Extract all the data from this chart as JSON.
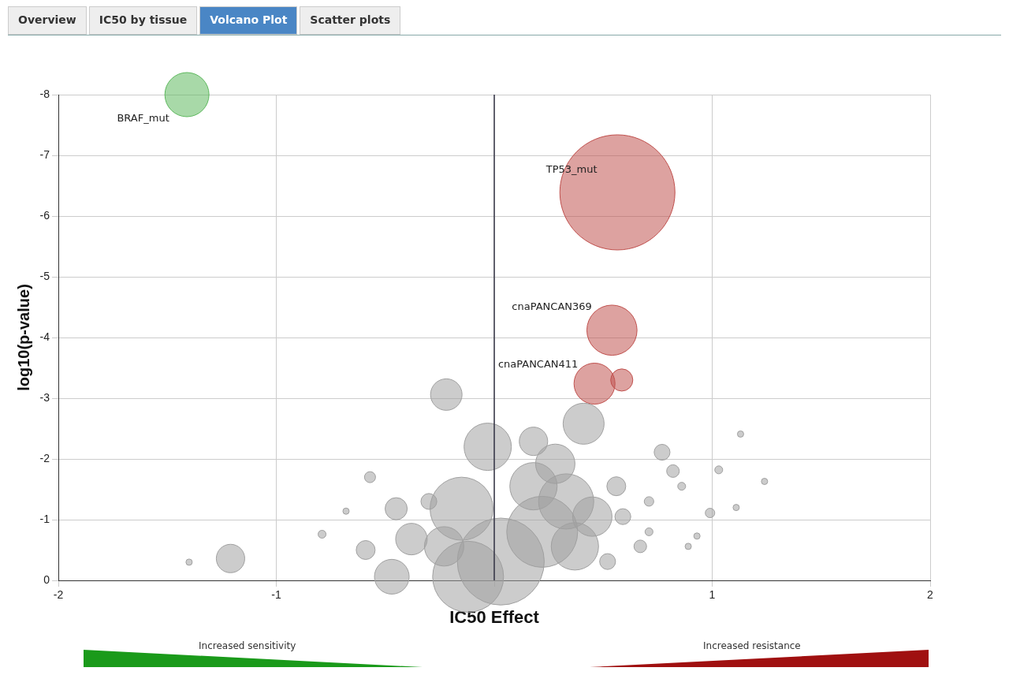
{
  "chart_data": {
    "type": "bubble",
    "xlabel": "IC50 Effect",
    "ylabel": "log10(p-value)",
    "xlim": [
      -2,
      2
    ],
    "xticks": [
      -2,
      -1,
      {
        "value": 0,
        "label": null
      },
      1,
      2
    ],
    "ylim": [
      0,
      -8
    ],
    "yticks": [
      -8,
      -7,
      -6,
      -5,
      -4,
      -3,
      -2,
      -1,
      0
    ],
    "grid": true,
    "legend": false,
    "ref_lines": [
      {
        "axis": "x",
        "value": 0,
        "color": "#333344"
      }
    ],
    "annotations": [
      "Overview",
      "IC50 by tissue",
      "Volcano Plot",
      "Scatter plots",
      {
        "text": "BRAF_mut",
        "x": -1.41,
        "y": -8.0
      },
      {
        "text": "TP53_mut",
        "x": 0.565,
        "y": -6.39
      },
      {
        "text": "cnaPANCAN369",
        "x": 0.54,
        "y": -4.12
      },
      {
        "text": "cnaPANCAN411",
        "x": 0.46,
        "y": -3.24
      },
      "Increased sensitivity",
      "Increased resistance"
    ],
    "series": [
      {
        "color": "#a0a0a0",
        "x": [
          -0.22,
          0.41,
          -0.03,
          0.28,
          -0.15,
          0.03,
          0.22,
          0.33,
          -0.12,
          -0.23,
          0.37,
          0.45,
          0.18,
          -0.38,
          -0.47,
          0.18,
          0.56,
          0.77,
          0.82,
          0.59,
          0.71,
          0.86,
          0.99,
          1.13,
          1.03,
          1.24,
          1.11,
          -0.57,
          -0.59,
          -0.79,
          -0.68,
          -0.45,
          -1.4,
          -1.21,
          -0.3,
          0.93,
          0.71,
          0.67,
          0.52,
          0.89
        ],
        "values": [
          -3.06,
          -2.58,
          -2.2,
          -1.92,
          -1.18,
          -0.31,
          -0.8,
          -1.3,
          -0.06,
          -0.56,
          -0.56,
          -1.05,
          -1.55,
          -0.68,
          -0.06,
          -2.29,
          -1.55,
          -2.11,
          -1.8,
          -1.05,
          -1.3,
          -1.55,
          -1.11,
          -2.41,
          -1.82,
          -1.63,
          -1.2,
          -1.7,
          -0.5,
          -0.76,
          -1.14,
          -1.18,
          -0.3,
          -0.36,
          -1.3,
          -0.73,
          -0.8,
          -0.56,
          -0.31,
          -0.56
        ],
        "sizes": [
          0.075,
          0.127,
          0.169,
          0.117,
          0.3,
          0.57,
          0.38,
          0.23,
          0.38,
          0.117,
          0.169,
          0.117,
          0.169,
          0.075,
          0.091,
          0.061,
          0.027,
          0.019,
          0.012,
          0.019,
          0.0068,
          0.0047,
          0.0068,
          0.003,
          0.0047,
          0.003,
          0.003,
          0.0092,
          0.027,
          0.0047,
          0.003,
          0.037,
          0.003,
          0.061,
          0.019,
          0.003,
          0.0047,
          0.012,
          0.019,
          0.003
        ]
      },
      {
        "color": "#5cb85c",
        "x": [
          -1.41
        ],
        "values": [
          -8.0
        ],
        "sizes": [
          0.147
        ]
      },
      {
        "color": "#c0504d",
        "x": [
          0.565,
          0.54,
          0.46,
          0.585
        ],
        "values": [
          -6.39,
          -4.12,
          -3.24,
          -3.3
        ],
        "sizes": [
          1,
          0.19,
          0.127,
          0.037
        ]
      }
    ]
  }
}
